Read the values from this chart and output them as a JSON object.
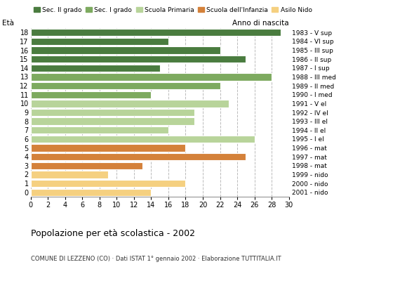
{
  "ages": [
    18,
    17,
    16,
    15,
    14,
    13,
    12,
    11,
    10,
    9,
    8,
    7,
    6,
    5,
    4,
    3,
    2,
    1,
    0
  ],
  "values": [
    29,
    16,
    22,
    25,
    15,
    28,
    22,
    14,
    23,
    19,
    19,
    16,
    26,
    18,
    25,
    13,
    9,
    18,
    14
  ],
  "colors": [
    "#4a7c3f",
    "#4a7c3f",
    "#4a7c3f",
    "#4a7c3f",
    "#4a7c3f",
    "#7daa5f",
    "#7daa5f",
    "#7daa5f",
    "#b8d49a",
    "#b8d49a",
    "#b8d49a",
    "#b8d49a",
    "#b8d49a",
    "#d4813a",
    "#d4813a",
    "#d4813a",
    "#f5d080",
    "#f5d080",
    "#f5d080"
  ],
  "right_labels": [
    "1983 - V sup",
    "1984 - VI sup",
    "1985 - III sup",
    "1986 - II sup",
    "1987 - I sup",
    "1988 - III med",
    "1989 - II med",
    "1990 - I med",
    "1991 - V el",
    "1992 - IV el",
    "1993 - III el",
    "1994 - II el",
    "1995 - I el",
    "1996 - mat",
    "1997 - mat",
    "1998 - mat",
    "1999 - nido",
    "2000 - nido",
    "2001 - nido"
  ],
  "legend_labels": [
    "Sec. II grado",
    "Sec. I grado",
    "Scuola Primaria",
    "Scuola dell'Infanzia",
    "Asilo Nido"
  ],
  "legend_colors": [
    "#4a7c3f",
    "#7daa5f",
    "#b8d49a",
    "#d4813a",
    "#f5d080"
  ],
  "title": "Popolazione per età scolastica - 2002",
  "subtitle": "COMUNE DI LEZZENO (CO) · Dati ISTAT 1° gennaio 2002 · Elaborazione TUTTITALIA.IT",
  "label_eta": "Età",
  "label_anno": "Anno di nascita",
  "xlim": [
    0,
    30
  ],
  "xticks": [
    0,
    2,
    4,
    6,
    8,
    10,
    12,
    14,
    16,
    18,
    20,
    22,
    24,
    26,
    28,
    30
  ],
  "background_color": "#ffffff",
  "grid_color": "#bbbbbb"
}
